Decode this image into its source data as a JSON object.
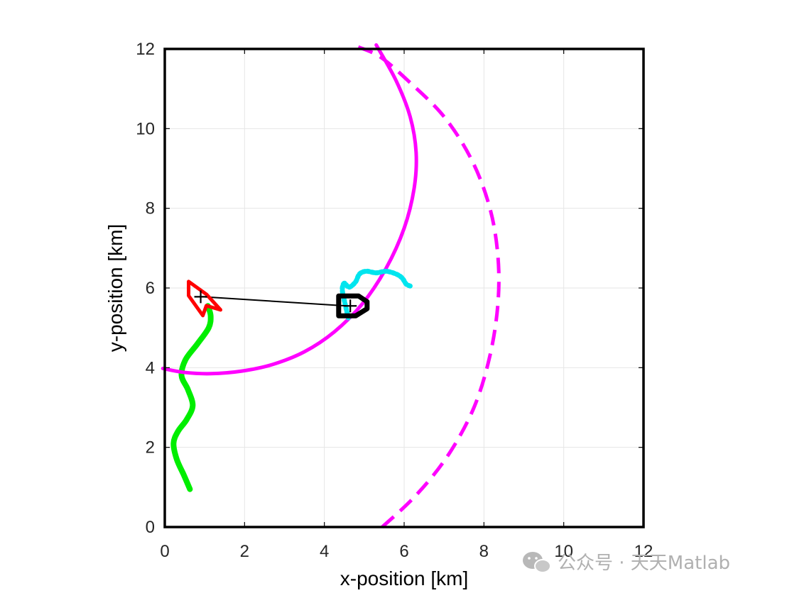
{
  "chart_data": {
    "type": "line",
    "title": "",
    "xlabel": "x-position [km]",
    "ylabel": "y-position [km]",
    "xlim": [
      0,
      12
    ],
    "ylim": [
      0,
      12
    ],
    "xticks": [
      0,
      2,
      4,
      6,
      8,
      10,
      12
    ],
    "yticks": [
      0,
      2,
      4,
      6,
      8,
      10,
      12
    ],
    "tick_labels_x": [
      "0",
      "2",
      "4",
      "6",
      "8",
      "10",
      "12"
    ],
    "tick_labels_y": [
      "0",
      "2",
      "4",
      "6",
      "8",
      "10",
      "12"
    ],
    "grid": true,
    "series": [
      {
        "name": "green-trajectory",
        "color": "#00ee00",
        "style": "solid",
        "x": [
          0.63,
          0.48,
          0.3,
          0.22,
          0.33,
          0.55,
          0.7,
          0.58,
          0.42,
          0.52,
          0.82,
          1.1,
          1.15,
          1.08
        ],
        "y": [
          0.95,
          1.3,
          1.7,
          2.1,
          2.4,
          2.7,
          3.05,
          3.45,
          3.8,
          4.2,
          4.6,
          5.0,
          5.3,
          5.55
        ]
      },
      {
        "name": "magenta-solid-arc",
        "color": "#ff00ff",
        "style": "solid",
        "x": [
          -0.05,
          0.5,
          1.15,
          1.9,
          2.7,
          3.5,
          4.25,
          4.95,
          5.55,
          6.0,
          6.25,
          6.3,
          6.15,
          5.8,
          5.3
        ],
        "y": [
          3.98,
          3.88,
          3.85,
          3.91,
          4.08,
          4.4,
          4.9,
          5.6,
          6.5,
          7.5,
          8.5,
          9.4,
          10.3,
          11.2,
          12.1
        ]
      },
      {
        "name": "magenta-dashed-arc",
        "color": "#ff00ff",
        "style": "dashed",
        "x": [
          5.45,
          6.3,
          7.1,
          7.75,
          8.15,
          8.35,
          8.35,
          8.15,
          7.7,
          7.0,
          6.1,
          5.4,
          4.85
        ],
        "y": [
          0.0,
          0.8,
          1.8,
          3.0,
          4.3,
          5.6,
          6.8,
          8.0,
          9.2,
          10.3,
          11.2,
          11.8,
          12.05
        ]
      },
      {
        "name": "cyan-trajectory",
        "color": "#00e5ee",
        "style": "solid",
        "x": [
          4.6,
          4.52,
          4.45,
          4.5,
          4.62,
          4.78,
          4.88,
          5.05,
          5.3,
          5.55,
          5.8,
          5.95,
          6.05,
          6.15
        ],
        "y": [
          5.25,
          5.6,
          5.95,
          6.12,
          6.02,
          6.15,
          6.35,
          6.42,
          6.38,
          6.42,
          6.35,
          6.25,
          6.1,
          6.05
        ]
      },
      {
        "name": "black-line-of-sight",
        "color": "#000000",
        "style": "solid",
        "x": [
          0.95,
          4.55
        ],
        "y": [
          5.78,
          5.55
        ]
      }
    ],
    "markers": [
      {
        "name": "red-vehicle",
        "color": "#ff0000",
        "x": 0.9,
        "y": 5.7,
        "heading_deg": 60
      },
      {
        "name": "black-vehicle",
        "color": "#000000",
        "x": 4.75,
        "y": 5.55,
        "heading_deg": 0
      },
      {
        "name": "crosshair-left",
        "color": "#000000",
        "x": 0.9,
        "y": 5.78,
        "symbol": "+"
      },
      {
        "name": "crosshair-right",
        "color": "#000000",
        "x": 4.65,
        "y": 5.55,
        "symbol": "+"
      }
    ]
  },
  "watermark": {
    "text": "公众号 · 天天Matlab",
    "icon": "wechat-icon"
  }
}
